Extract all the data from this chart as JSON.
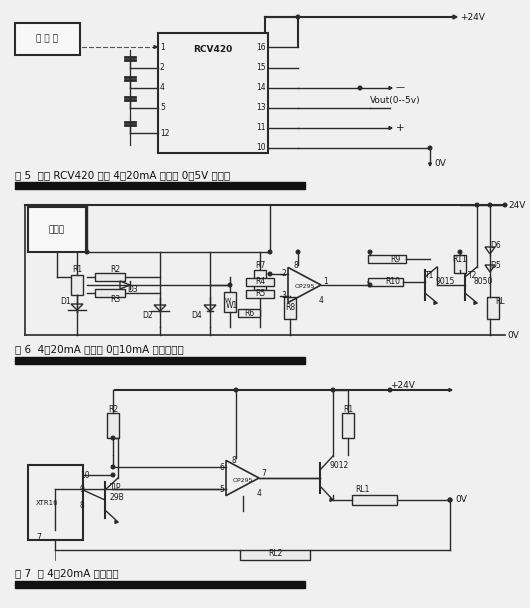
{
  "bg_color": "#f0f0f0",
  "line_color": "#2a2a2a",
  "text_color": "#1a1a1a",
  "caption_color": "#111111",
  "sep_color": "#111111",
  "fig5_caption": "图 5  利用 RCV420 构成 4～20mA 变换为 0～5V 的原理",
  "fig6_caption": "图 6  4～20mA 变换为 0～10mA 的电路原理",
  "fig7_caption": "图 7  双 4～20mA 输出原理",
  "fs_cap": 7.5,
  "fs_label": 6.5,
  "fs_small": 5.5
}
